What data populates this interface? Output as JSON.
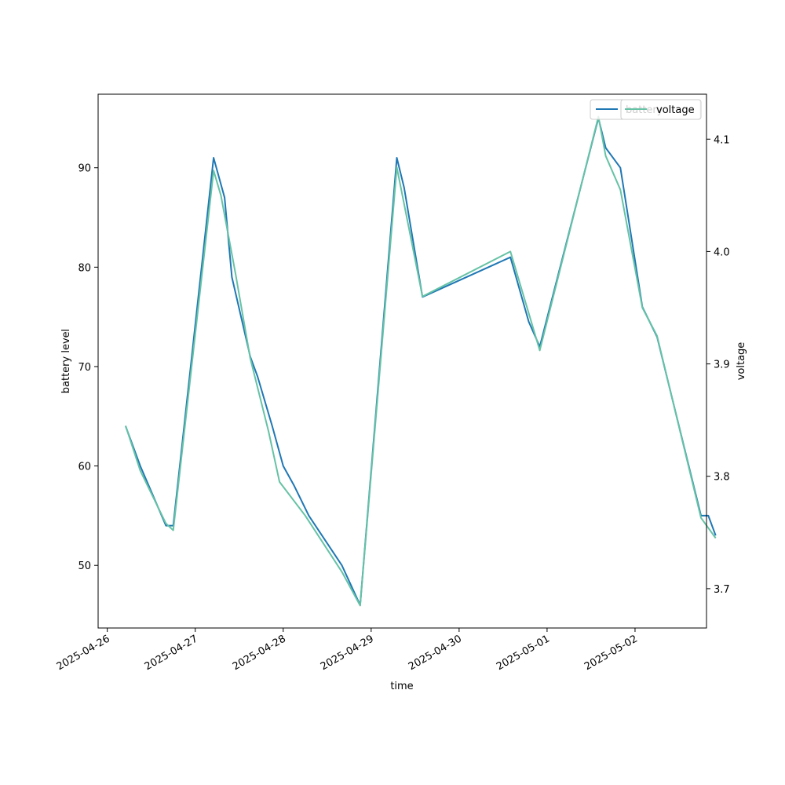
{
  "chart_data": {
    "type": "line",
    "xlabel": "time",
    "ylabel": "battery level",
    "y2label": "voltage",
    "x_axis_type": "datetime",
    "x_range": [
      "2025-04-25T21:30",
      "2025-05-02T19:30"
    ],
    "ylim": [
      43.7,
      97.4
    ],
    "y2lim": [
      3.665,
      4.14
    ],
    "x_ticks": [
      "2025-04-26",
      "2025-04-27",
      "2025-04-28",
      "2025-04-29",
      "2025-04-30",
      "2025-05-01",
      "2025-05-02"
    ],
    "y_ticks": [
      50,
      60,
      70,
      80,
      90
    ],
    "y2_ticks": [
      "3.7",
      "3.8",
      "3.9",
      "4.0",
      "4.1"
    ],
    "legend_position": "top-right",
    "legend_overlap": true,
    "series": [
      {
        "name": "battery",
        "axis": "left",
        "color": "#1f77b4",
        "points": [
          [
            "2025-04-26T05:00",
            64
          ],
          [
            "2025-04-26T09:00",
            60
          ],
          [
            "2025-04-26T16:00",
            54
          ],
          [
            "2025-04-26T18:00",
            54
          ],
          [
            "2025-04-27T05:00",
            91
          ],
          [
            "2025-04-27T08:00",
            87
          ],
          [
            "2025-04-27T10:00",
            79
          ],
          [
            "2025-04-27T15:00",
            71
          ],
          [
            "2025-04-27T17:00",
            69
          ],
          [
            "2025-04-27T21:00",
            64
          ],
          [
            "2025-04-28T00:00",
            60
          ],
          [
            "2025-04-28T03:00",
            58
          ],
          [
            "2025-04-28T07:00",
            55
          ],
          [
            "2025-04-28T16:00",
            50
          ],
          [
            "2025-04-28T21:00",
            46
          ],
          [
            "2025-04-29T07:00",
            91
          ],
          [
            "2025-04-29T09:00",
            88
          ],
          [
            "2025-04-29T14:00",
            77
          ],
          [
            "2025-04-30T14:00",
            81
          ],
          [
            "2025-04-30T19:00",
            74.5
          ],
          [
            "2025-04-30T22:00",
            72
          ],
          [
            "2025-05-01T14:00",
            95
          ],
          [
            "2025-05-01T16:00",
            92
          ],
          [
            "2025-05-01T20:00",
            90
          ],
          [
            "2025-05-02T02:00",
            76
          ],
          [
            "2025-05-02T06:00",
            73
          ],
          [
            "2025-05-02T18:00",
            55
          ],
          [
            "2025-05-02T20:00",
            55
          ],
          [
            "2025-05-02T22:00",
            53
          ]
        ]
      },
      {
        "name": "voltage",
        "axis": "right",
        "color": "#66c2a5",
        "points": [
          [
            "2025-04-26T05:00",
            3.845
          ],
          [
            "2025-04-26T09:00",
            3.805
          ],
          [
            "2025-04-26T16:00",
            3.758
          ],
          [
            "2025-04-26T18:00",
            3.752
          ],
          [
            "2025-04-27T05:00",
            4.072
          ],
          [
            "2025-04-27T07:00",
            4.05
          ],
          [
            "2025-04-27T11:00",
            3.98
          ],
          [
            "2025-04-27T15:00",
            3.905
          ],
          [
            "2025-04-27T20:00",
            3.84
          ],
          [
            "2025-04-27T23:00",
            3.795
          ],
          [
            "2025-04-28T06:00",
            3.765
          ],
          [
            "2025-04-28T16:00",
            3.715
          ],
          [
            "2025-04-28T21:00",
            3.685
          ],
          [
            "2025-04-29T07:00",
            4.075
          ],
          [
            "2025-04-29T14:00",
            3.96
          ],
          [
            "2025-04-30T14:00",
            4.0
          ],
          [
            "2025-04-30T19:00",
            3.945
          ],
          [
            "2025-04-30T22:00",
            3.912
          ],
          [
            "2025-05-01T14:00",
            4.12
          ],
          [
            "2025-05-01T16:00",
            4.085
          ],
          [
            "2025-05-01T20:00",
            4.055
          ],
          [
            "2025-05-02T02:00",
            3.95
          ],
          [
            "2025-05-02T06:00",
            3.925
          ],
          [
            "2025-05-02T18:00",
            3.763
          ],
          [
            "2025-05-02T22:00",
            3.745
          ]
        ]
      }
    ]
  }
}
